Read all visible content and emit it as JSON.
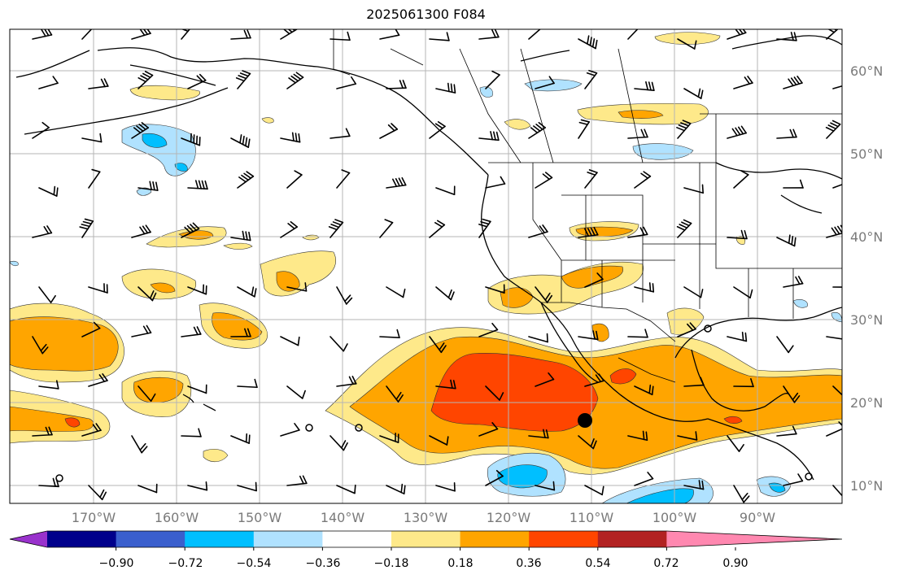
{
  "title": "2025061300 F084",
  "map": {
    "lat_labels": [
      "60°N",
      "50°N",
      "40°N",
      "30°N",
      "20°N",
      "10°N"
    ],
    "lon_labels": [
      "170°W",
      "160°W",
      "150°W",
      "140°W",
      "130°W",
      "120°W",
      "110°W",
      "100°W",
      "90°W"
    ]
  },
  "colorbar": {
    "ticks": [
      "−0.90",
      "−0.72",
      "−0.54",
      "−0.36",
      "−0.18",
      "0.18",
      "0.36",
      "0.54",
      "0.72",
      "0.90"
    ],
    "colors": [
      "#9932cc",
      "#00008b",
      "#3a5fcd",
      "#00bfff",
      "#b0e2ff",
      "#ffffff",
      "#fee98a",
      "#ffa500",
      "#ff4500",
      "#b22222",
      "#ff88b0"
    ]
  }
}
